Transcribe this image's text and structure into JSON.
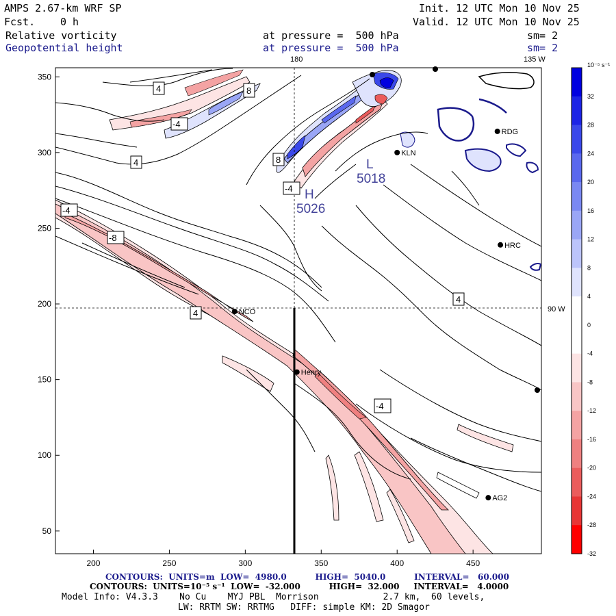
{
  "header": {
    "title": "AMPS 2.67-km WRF SP",
    "fcst_label": "Fcst.",
    "fcst_value": "0 h",
    "init": "Init. 12 UTC Mon 10 Nov 25",
    "valid": "Valid. 12 UTC Mon 10 Nov 25",
    "field1": "Relative vorticity",
    "field2": "Geopotential height",
    "pressure1": "at pressure =  500 hPa",
    "pressure2": "at pressure =  500 hPa",
    "sm1": "sm= 2",
    "sm2": "sm= 2"
  },
  "map": {
    "lon_label_top": "180",
    "lon_label_right": "135 W",
    "lat_label_right": "90 W",
    "x_ticks": [
      "200",
      "250",
      "300",
      "350",
      "400",
      "450"
    ],
    "y_ticks": [
      "300",
      "250",
      "200",
      "150",
      "100",
      "50",
      "350"
    ],
    "x_tick_values": [
      200,
      250,
      300,
      350,
      400,
      450
    ],
    "y_tick_values": [
      300,
      250,
      200,
      150,
      100,
      50,
      350
    ],
    "x_range": [
      175,
      495
    ],
    "y_range": [
      35,
      356
    ],
    "stations": [
      {
        "name": "NCO",
        "x": 293,
        "y": 195
      },
      {
        "name": "Henry",
        "x": 334,
        "y": 155
      },
      {
        "name": "RDG",
        "x": 466,
        "y": 314
      },
      {
        "name": "HRC",
        "x": 468,
        "y": 239
      },
      {
        "name": "AG2",
        "x": 460,
        "y": 72
      },
      {
        "name": "KLN",
        "x": 400,
        "y": 300
      }
    ],
    "pressure_centers": [
      {
        "type": "H",
        "value": "5026"
      },
      {
        "type": "L",
        "value": "5018"
      }
    ],
    "contour_labels": [
      "4",
      "8",
      "-4",
      "4",
      "8",
      "-4",
      "-4",
      "-8",
      "4",
      "4",
      "-4"
    ]
  },
  "colorbar": {
    "unit": "10⁻⁵ s⁻¹",
    "labels": [
      "32",
      "28",
      "24",
      "20",
      "16",
      "12",
      "8",
      "4",
      "0",
      "-4",
      "-8",
      "-12",
      "-16",
      "-20",
      "-24",
      "-28",
      "-32"
    ],
    "colors": [
      "#0000e0",
      "#1c24e6",
      "#3a48ea",
      "#5a68ee",
      "#7a88f2",
      "#9aa6f6",
      "#bcc4fa",
      "#dfe3fd",
      "#ffffff",
      "#ffffff",
      "#fde4e4",
      "#f9c5c5",
      "#f4a3a3",
      "#ef8080",
      "#eb5c5c",
      "#e83535",
      "#ff0000"
    ]
  },
  "footer": {
    "line1": "CONTOURS:  UNITS=m  LOW=  4980.0          HIGH=  5040.0          INTERVAL=   60.000",
    "line2": "CONTOURS:  UNITS=10⁻⁵ s⁻¹  LOW=  -32.000          HIGH=  32.000     INTERVAL=   4.0000",
    "line3": "Model Info: V4.3.3    No Cu    MYJ PBL  Morrison            2.7 km,  60 levels,",
    "line4": "LW: RRTM SW: RRTMG   DIFF: simple KM: 2D Smagor"
  }
}
